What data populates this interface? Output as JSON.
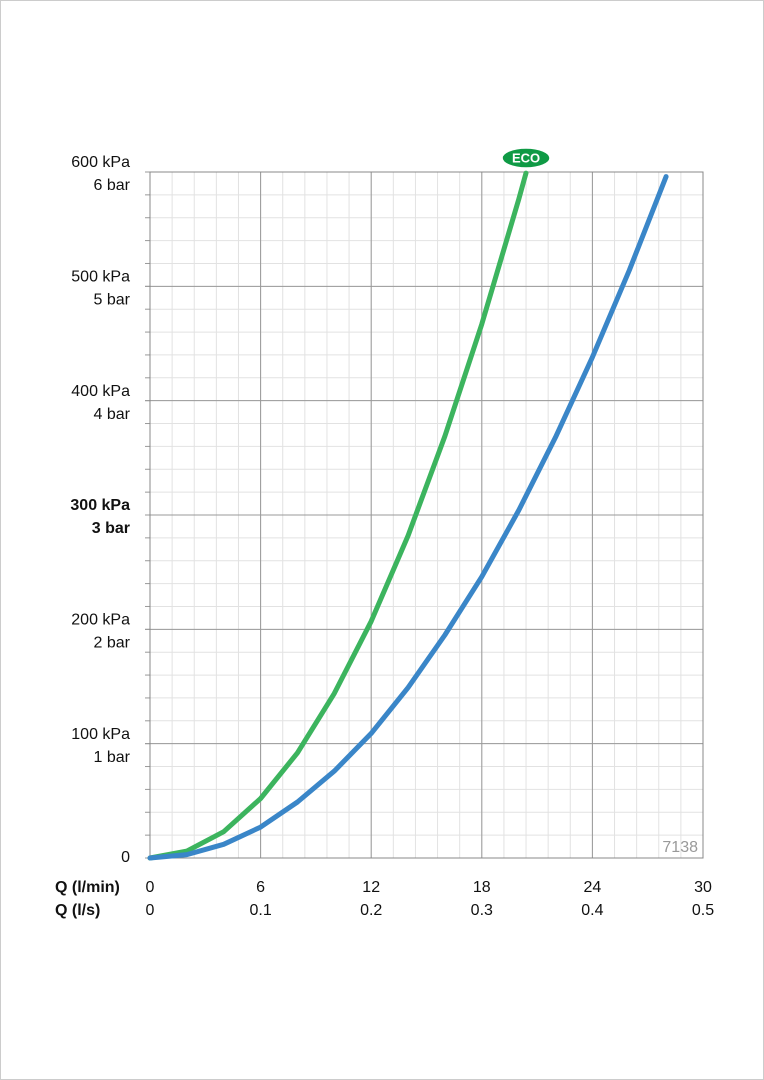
{
  "chart_data": {
    "type": "line",
    "xlim": [
      0,
      30
    ],
    "xticks": [
      0,
      6,
      12,
      18,
      24,
      30
    ],
    "xlabel": "Q (l/min)",
    "x2lim": [
      0,
      0.5
    ],
    "x2ticks": [
      0,
      0.1,
      0.2,
      0.3,
      0.4,
      0.5
    ],
    "x2label": "Q (l/s)",
    "ylim": [
      0,
      600
    ],
    "yticks": [
      {
        "value": 0,
        "label": "0"
      },
      {
        "value": 100,
        "label": "100 kPa"
      },
      {
        "value": 200,
        "label": "200 kPa"
      },
      {
        "value": 300,
        "label": "300 kPa"
      },
      {
        "value": 400,
        "label": "400 kPa"
      },
      {
        "value": 500,
        "label": "500 kPa"
      },
      {
        "value": 600,
        "label": "600 kPa"
      }
    ],
    "y2lim": [
      0,
      6
    ],
    "y2ticks": [
      {
        "value": 1,
        "label": "1 bar"
      },
      {
        "value": 2,
        "label": "2 bar"
      },
      {
        "value": 3,
        "label": "3 bar"
      },
      {
        "value": 4,
        "label": "4 bar"
      },
      {
        "value": 5,
        "label": "5 bar"
      },
      {
        "value": 6,
        "label": "6 bar"
      }
    ],
    "bold_ytick": 300,
    "grid": true,
    "minor_xstep": 1.2,
    "minor_ystep": 20,
    "annotation": "7138",
    "series": [
      {
        "name": "ECO",
        "color": "#3cb45e",
        "x": [
          0,
          2,
          4,
          6,
          8,
          10,
          12,
          14,
          16,
          18,
          20,
          20.4
        ],
        "values": [
          0,
          6,
          23,
          52,
          92,
          144,
          207,
          282,
          369,
          467,
          576,
          599
        ]
      },
      {
        "color": "#3a86c8",
        "x": [
          0,
          2,
          4,
          6,
          8,
          10,
          12,
          14,
          16,
          18,
          20,
          22,
          24,
          26,
          28
        ],
        "values": [
          0,
          3,
          12,
          27,
          49,
          76,
          109,
          149,
          195,
          246,
          304,
          368,
          438,
          514,
          596
        ]
      }
    ]
  }
}
